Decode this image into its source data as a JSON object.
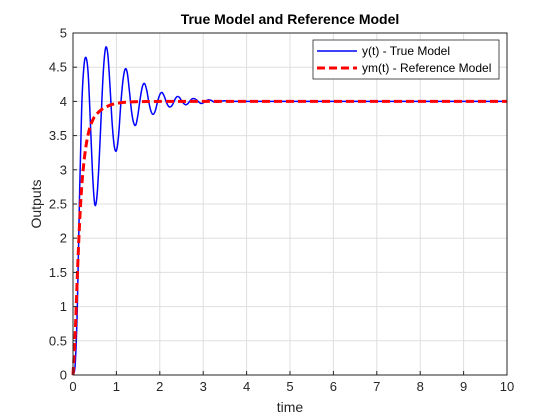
{
  "chart_data": {
    "type": "line",
    "title": "True Model and Reference Model",
    "xlabel": "time",
    "ylabel": "Outputs",
    "xlim": [
      0,
      10
    ],
    "ylim": [
      0,
      5
    ],
    "xticks": [
      0,
      1,
      2,
      3,
      4,
      5,
      6,
      7,
      8,
      9,
      10
    ],
    "yticks": [
      0,
      0.5,
      1,
      1.5,
      2,
      2.5,
      3,
      3.5,
      4,
      4.5,
      5
    ],
    "grid": true,
    "legend_position": "top-right",
    "series": [
      {
        "name": "y(t) - True Model",
        "color": "#0000ff",
        "style": "solid",
        "x": [
          0,
          0.05,
          0.1,
          0.15,
          0.2,
          0.25,
          0.3,
          0.35,
          0.4,
          0.45,
          0.5,
          0.55,
          0.6,
          0.65,
          0.7,
          0.75,
          0.8,
          0.85,
          0.9,
          0.95,
          1.0,
          1.05,
          1.1,
          1.15,
          1.2,
          1.25,
          1.3,
          1.35,
          1.4,
          1.45,
          1.5,
          1.55,
          1.6,
          1.65,
          1.7,
          1.75,
          1.8,
          1.85,
          1.9,
          1.95,
          2.0,
          2.05,
          2.1,
          2.15,
          2.2,
          2.25,
          2.3,
          2.35,
          2.4,
          2.45,
          2.5,
          2.55,
          2.6,
          2.65,
          2.7,
          2.75,
          2.8,
          2.85,
          2.9,
          2.95,
          3.0,
          3.05,
          3.1,
          3.15,
          3.2,
          3.25,
          3.3,
          3.35,
          3.4,
          3.5,
          3.6,
          3.7,
          3.8,
          4.0,
          4.5,
          5,
          6,
          7,
          8,
          9,
          10
        ],
        "y": [
          0,
          0.15,
          1.0,
          2.6,
          3.9,
          4.5,
          4.64,
          4.4,
          3.7,
          2.95,
          2.5,
          2.6,
          3.1,
          3.8,
          4.45,
          4.78,
          4.7,
          4.25,
          3.7,
          3.35,
          3.28,
          3.5,
          3.95,
          4.3,
          4.47,
          4.42,
          4.15,
          3.85,
          3.68,
          3.66,
          3.82,
          4.05,
          4.22,
          4.26,
          4.16,
          3.98,
          3.85,
          3.81,
          3.87,
          4.0,
          4.1,
          4.13,
          4.08,
          3.99,
          3.93,
          3.92,
          3.96,
          4.03,
          4.07,
          4.06,
          4.01,
          3.97,
          3.95,
          3.97,
          4.01,
          4.04,
          4.04,
          4.02,
          3.99,
          3.97,
          3.98,
          4.0,
          4.02,
          4.02,
          4.01,
          3.99,
          3.99,
          3.99,
          4.0,
          4.01,
          4.0,
          4.0,
          4.0,
          4.0,
          4.0,
          4.0,
          4.0,
          4.0,
          4.0,
          4.0,
          4.0
        ]
      },
      {
        "name": "ym(t) - Reference Model",
        "color": "#ff0000",
        "style": "dashed",
        "x": [
          0,
          0.05,
          0.1,
          0.15,
          0.2,
          0.25,
          0.3,
          0.35,
          0.4,
          0.45,
          0.5,
          0.6,
          0.7,
          0.8,
          0.9,
          1.0,
          1.1,
          1.2,
          1.3,
          1.5,
          1.7,
          2.0,
          2.5,
          3,
          4,
          5,
          6,
          7,
          8,
          9,
          10
        ],
        "y": [
          0,
          0.6,
          1.45,
          2.2,
          2.75,
          3.1,
          3.35,
          3.52,
          3.64,
          3.72,
          3.78,
          3.85,
          3.9,
          3.93,
          3.955,
          3.97,
          3.98,
          3.987,
          3.992,
          3.996,
          3.998,
          4.0,
          4.0,
          4.0,
          4.0,
          4.0,
          4.0,
          4.0,
          4.0,
          4.0,
          4.0
        ]
      }
    ]
  }
}
